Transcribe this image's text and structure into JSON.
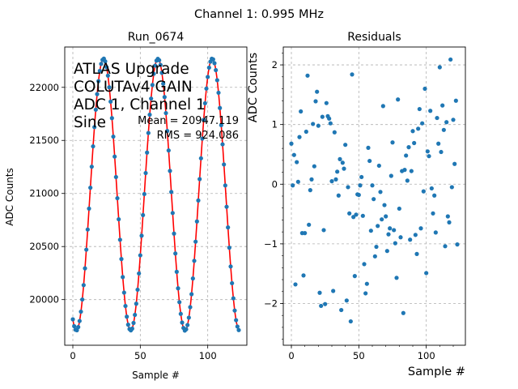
{
  "suptitle": "Channel 1: 0.995 MHz",
  "chart_data": [
    {
      "type": "scatter",
      "title": "Run_0674",
      "xlabel": "Sample #",
      "ylabel": "ADC Counts",
      "xlim": [
        -6,
        129
      ],
      "ylim": [
        19570,
        22380
      ],
      "xticks": [
        0,
        50,
        100
      ],
      "yticks": [
        20000,
        20500,
        21000,
        21500,
        22000
      ],
      "grid": true,
      "annotation_lines": [
        "ATLAS Upgrade",
        "COLUTAv4 GAIN",
        "ADC 1, Channel 1",
        "Sine"
      ],
      "stats": [
        "Mean = 20947.119",
        "RMS = 924.086"
      ],
      "marker_color": "#1f77b4",
      "fit_color": "#ff0000",
      "fit": {
        "mean": 20990,
        "amplitude": 1280,
        "period": 40.3,
        "phase_sample": 2.6
      },
      "samples": {
        "start": 0,
        "count": 124
      }
    },
    {
      "type": "scatter",
      "title": "Residuals",
      "xlabel": "Sample #",
      "ylabel": "ADC Counts",
      "xlim": [
        -6,
        129
      ],
      "ylim": [
        -2.7,
        2.3
      ],
      "xticks": [
        0,
        50,
        100
      ],
      "yticks": [
        -2,
        -1,
        0,
        1,
        2
      ],
      "grid": true,
      "marker_color": "#1f77b4",
      "x": [
        0,
        1,
        2,
        3,
        4,
        5,
        6,
        7,
        8,
        9,
        10,
        11,
        12,
        13,
        14,
        15,
        16,
        17,
        18,
        19,
        20,
        21,
        22,
        23,
        24,
        25,
        26,
        27,
        28,
        29,
        30,
        31,
        32,
        33,
        34,
        35,
        36,
        37,
        38,
        39,
        40,
        41,
        42,
        43,
        44,
        45,
        46,
        47,
        48,
        49,
        50,
        51,
        52,
        53,
        54,
        55,
        56,
        57,
        58,
        59,
        60,
        61,
        62,
        63,
        64,
        65,
        66,
        67,
        68,
        69,
        70,
        71,
        72,
        73,
        74,
        75,
        76,
        77,
        78,
        79,
        80,
        81,
        82,
        83,
        84,
        85,
        86,
        87,
        88,
        89,
        90,
        91,
        92,
        93,
        94,
        95,
        96,
        97,
        98,
        99,
        100,
        101,
        102,
        103,
        104,
        105,
        106,
        107,
        108,
        109,
        110,
        111,
        112,
        113,
        114,
        115,
        116,
        117,
        118,
        119,
        120,
        121,
        122,
        123
      ],
      "values": [
        0.68,
        -0.02,
        0.49,
        -1.68,
        0.37,
        0.04,
        0.79,
        1.22,
        -0.82,
        -1.53,
        -0.82,
        0.88,
        1.82,
        -0.68,
        -0.1,
        0.08,
        1.01,
        0.3,
        1.39,
        1.55,
        0.98,
        -1.82,
        -2.04,
        1.13,
        -0.77,
        -2.01,
        1.36,
        1.14,
        1.1,
        1.02,
        0.05,
        -1.79,
        0.87,
        0.08,
        0.21,
        -0.19,
        0.42,
        -2.11,
        0.36,
        0.26,
        0.66,
        -1.95,
        -0.05,
        -0.49,
        -2.3,
        1.84,
        -0.55,
        -1.54,
        -0.51,
        -0.17,
        -0.18,
        -0.02,
        0.12,
        -0.53,
        -1.34,
        -1.83,
        -1.67,
        0.61,
        0.39,
        -0.78,
        -0.02,
        -0.25,
        -1.21,
        -1.05,
        -0.7,
        0.31,
        -0.13,
        -0.59,
        1.31,
        -0.35,
        -0.54,
        -1.12,
        -0.84,
        -0.74,
        0.14,
        0.7,
        -0.77,
        -0.99,
        -1.57,
        1.42,
        -0.41,
        -0.89,
        0.22,
        -2.16,
        0.24,
        0.48,
        0.06,
        0.62,
        -0.93,
        0.22,
        0.89,
        0.69,
        -0.85,
        -1.17,
        0.93,
        1.26,
        -0.74,
        1.02,
        -0.12,
        1.6,
        -1.49,
        0.55,
        0.47,
        1.23,
        -0.07,
        -0.49,
        -0.19,
        -0.81,
        1.11,
        0.68,
        1.96,
        0.54,
        1.32,
        0.91,
        -1.04,
        1.04,
        -0.54,
        -0.64,
        2.09,
        -0.05,
        1.08,
        0.34,
        1.4,
        -1.01
      ]
    }
  ]
}
